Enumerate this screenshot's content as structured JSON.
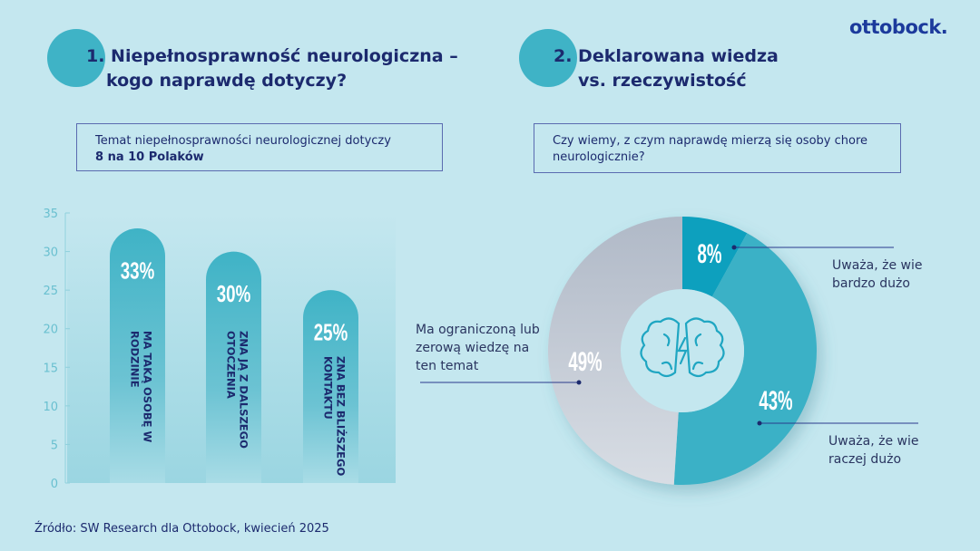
{
  "logo": "ottobock.",
  "section1": {
    "number_title_line1": "1. Niepełnosprawność neurologiczna –",
    "title_line2": "kogo naprawdę dotyczy?",
    "box_line1": "Temat niepełnosprawności neurologicznej dotyczy",
    "box_line2": "8 na 10 Polaków"
  },
  "section2": {
    "title_line1": "2. Deklarowana wiedza",
    "title_line2": "vs. rzeczywistość",
    "box_line1": "Czy wiemy, z czym naprawdę mierzą się osoby chore",
    "box_line2": "neurologicznie?"
  },
  "colors": {
    "background": "#c4e7ef",
    "accent": "#3fb3c6",
    "navy": "#1c2a6e",
    "dark_teal": "#0ea0be",
    "grey": "#bcc6d2"
  },
  "chart_data": [
    {
      "type": "bar",
      "ylim": [
        0,
        35
      ],
      "yticks": [
        "0",
        "5",
        "10",
        "15",
        "20",
        "25",
        "30",
        "35"
      ],
      "categories": [
        "MA TAKĄ OSOBĘ W RODZINIE",
        "ZNA JĄ Z DALSZEGO OTOCZENIA",
        "ZNA BEZ BLIŻSZEGO KONTAKTU"
      ],
      "category_lines": [
        [
          "MA TAKĄ OSOBĘ W",
          "RODZINIE"
        ],
        [
          "ZNA JĄ Z DALSZEGO",
          "OTOCZENIA"
        ],
        [
          "ZNA BEZ BLIŻSZEGO",
          "KONTAKTU"
        ]
      ],
      "values": [
        33,
        30,
        25
      ],
      "data_labels": [
        "33%",
        "30%",
        "25%"
      ]
    },
    {
      "type": "pie",
      "donut": true,
      "center_icon": "brain-lightning-icon",
      "slices": [
        {
          "value": 8,
          "label": "8%",
          "description": "Uważa, że wie bardzo dużo",
          "lines": [
            "Uważa, że wie",
            "bardzo dużo"
          ],
          "color": "#0ea0be"
        },
        {
          "value": 43,
          "label": "43%",
          "description": "Uważa, że wie raczej dużo",
          "lines": [
            "Uważa, że wie",
            "raczej dużo"
          ],
          "color": "#3ab1c6"
        },
        {
          "value": 49,
          "label": "49%",
          "description": "Ma ograniczoną lub zerową wiedzę na ten temat",
          "lines": [
            "Ma ograniczoną lub",
            "zerową wiedzę na",
            "ten temat"
          ],
          "color": "#bcc6d2"
        }
      ]
    }
  ],
  "source": "Źródło: SW Research dla Ottobock, kwiecień 2025"
}
